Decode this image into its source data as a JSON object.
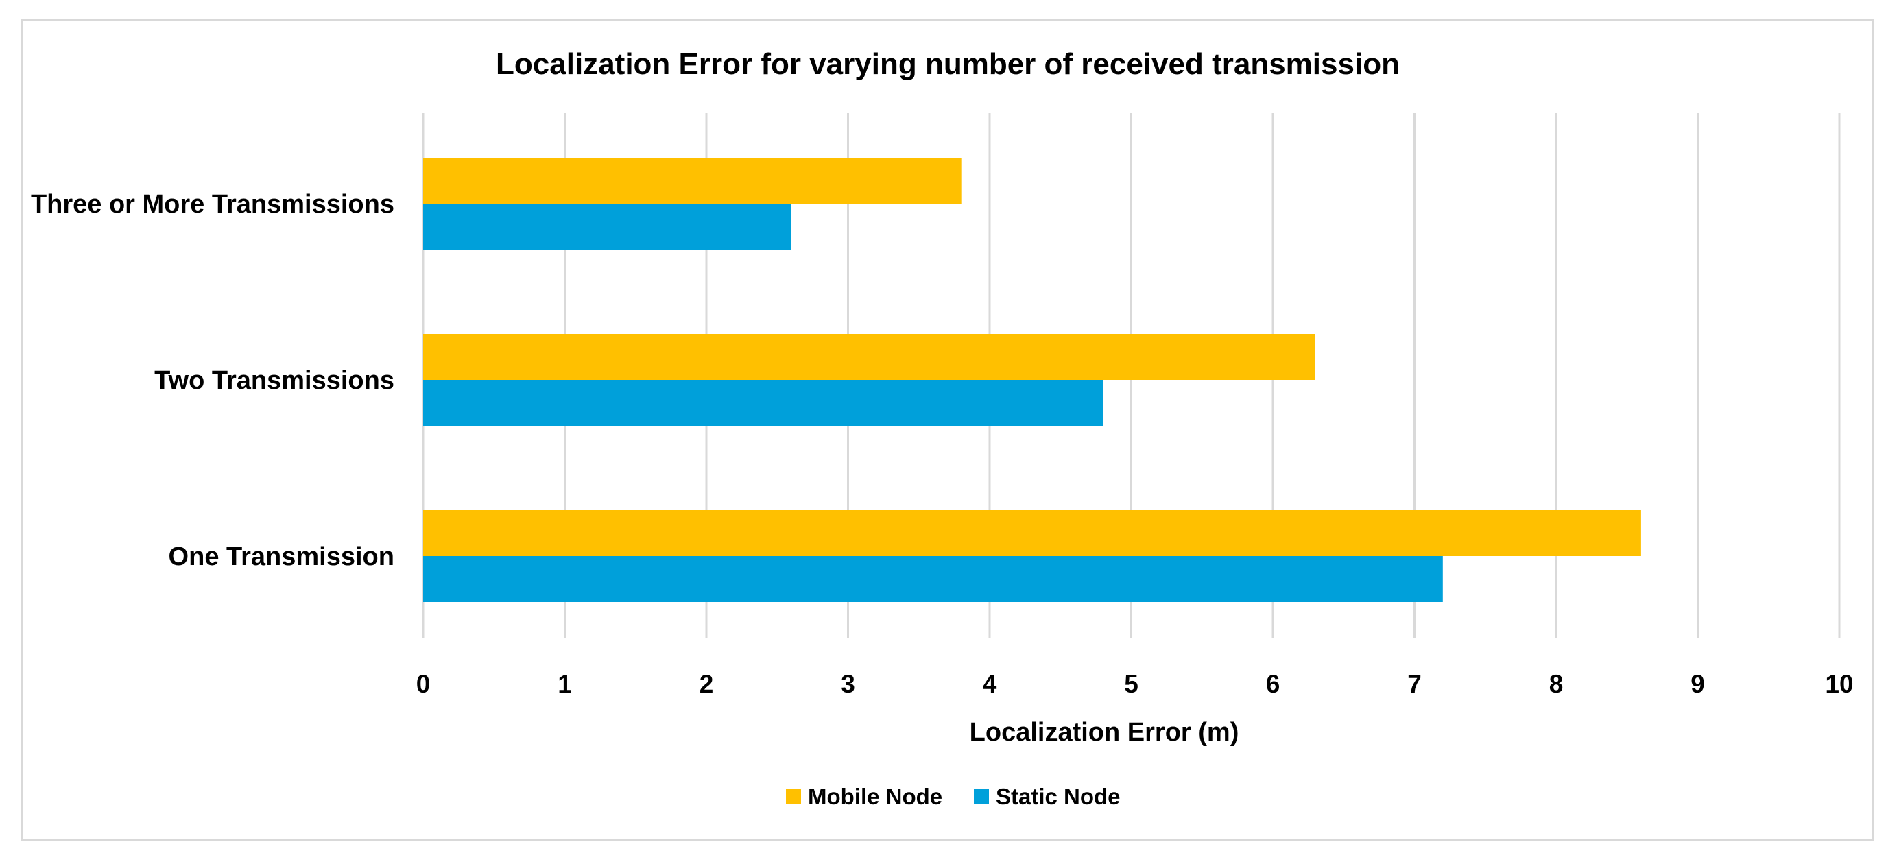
{
  "chart_data": {
    "type": "bar",
    "orientation": "horizontal",
    "title": "Localization Error for varying number of received transmission",
    "xlabel": "Localization Error (m)",
    "ylabel": "",
    "xlim": [
      0,
      10
    ],
    "xticks": [
      "0",
      "1",
      "2",
      "3",
      "4",
      "5",
      "6",
      "7",
      "8",
      "9",
      "10"
    ],
    "categories": [
      "Three or More Transmissions",
      "Two Transmissions",
      "One Transmission"
    ],
    "series": [
      {
        "name": "Mobile Node",
        "color": "#FFC000",
        "values": [
          3.8,
          6.3,
          8.6
        ]
      },
      {
        "name": "Static Node",
        "color": "#00A0DA",
        "values": [
          2.6,
          4.8,
          7.2
        ]
      }
    ],
    "grid": "vertical",
    "legend": "bottom-center"
  }
}
